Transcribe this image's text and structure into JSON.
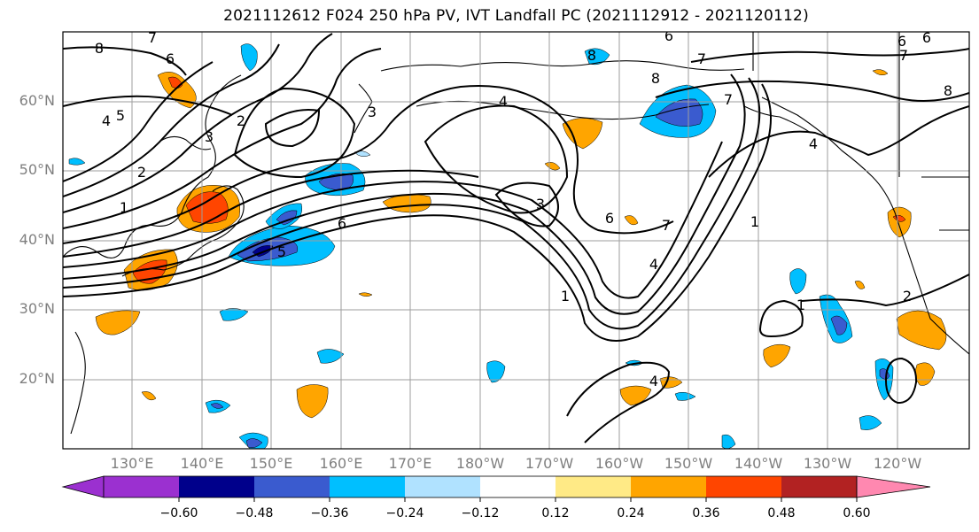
{
  "title": "2021112612 F024 250 hPa PV, IVT Landfall PC (2021112912 - 2021120112)",
  "lat_labels": [
    "60°N",
    "50°N",
    "40°N",
    "30°N",
    "20°N"
  ],
  "lon_labels": [
    "130°E",
    "140°E",
    "150°E",
    "160°E",
    "170°E",
    "180°W",
    "170°W",
    "160°W",
    "150°W",
    "140°W",
    "130°W",
    "120°W"
  ],
  "colorbar": {
    "tick_labels": [
      "−0.60",
      "−0.48",
      "−0.36",
      "−0.24",
      "−0.12",
      "0.12",
      "0.24",
      "0.36",
      "0.48",
      "0.60"
    ],
    "ticks": [
      -0.6,
      -0.48,
      -0.36,
      -0.24,
      -0.12,
      0.12,
      0.24,
      0.36,
      0.48,
      0.6
    ],
    "colors": [
      "#9b30d0",
      "#00008b",
      "#3a5bcf",
      "#00bfff",
      "#b0e2ff",
      "#ffffff",
      "#ffea86",
      "#ffa500",
      "#ff4500",
      "#b22222",
      "#ff88b0"
    ]
  },
  "contour_labels": [
    "8",
    "7",
    "6",
    "5",
    "4",
    "3",
    "2",
    "1",
    "2",
    "3",
    "6",
    "5",
    "4",
    "8",
    "7",
    "6",
    "3",
    "6",
    "7",
    "4",
    "1",
    "4",
    "1",
    "6",
    "7",
    "8",
    "8",
    "7",
    "6",
    "1",
    "2",
    "4"
  ]
}
